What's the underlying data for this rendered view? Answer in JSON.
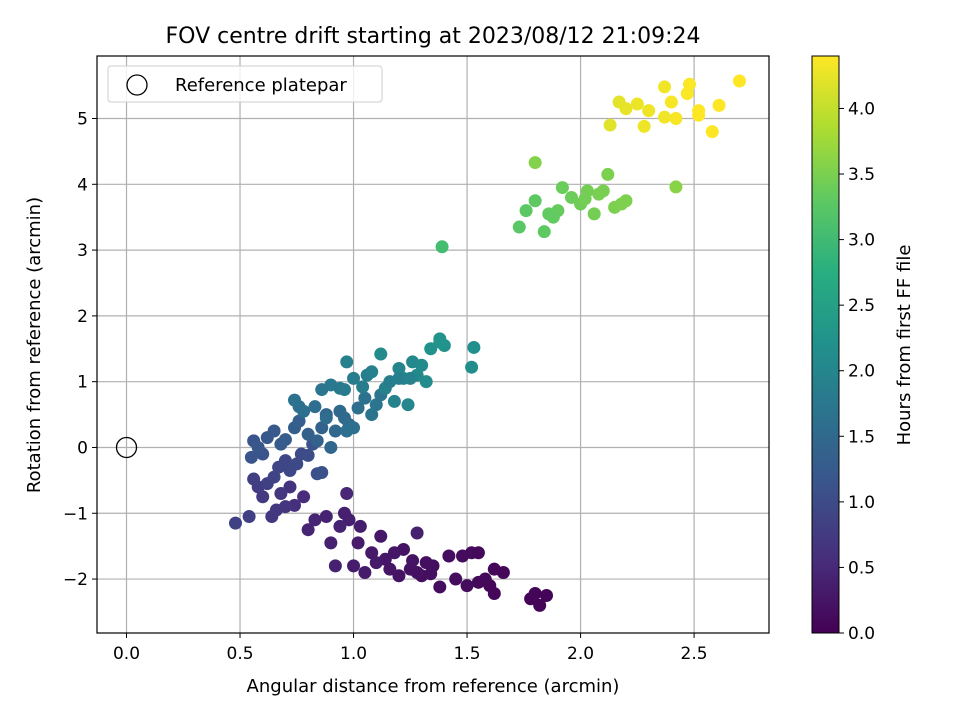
{
  "chart_data": {
    "type": "scatter",
    "title": "FOV centre drift starting at 2023/08/12 21:09:24",
    "xlabel": "Angular distance from reference (arcmin)",
    "ylabel": "Rotation from reference (arcmin)",
    "xlim": [
      -0.13,
      2.83
    ],
    "ylim": [
      -2.82,
      5.95
    ],
    "xticks": [
      0.0,
      0.5,
      1.0,
      1.5,
      2.0,
      2.5
    ],
    "xtick_labels": [
      "0.0",
      "0.5",
      "1.0",
      "1.5",
      "2.0",
      "2.5"
    ],
    "yticks": [
      -2,
      -1,
      0,
      1,
      2,
      3,
      4,
      5
    ],
    "ytick_labels": [
      "−2",
      "−1",
      "0",
      "1",
      "2",
      "3",
      "4",
      "5"
    ],
    "grid": true,
    "legend": {
      "position": "top-left",
      "label": "Reference platepar"
    },
    "reference_point": {
      "x": 0.0,
      "y": 0.0,
      "marker": "open-circle"
    },
    "colorbar": {
      "label": "Hours from first FF file",
      "colormap": "viridis",
      "range": [
        0.0,
        4.4
      ],
      "ticks": [
        0.0,
        0.5,
        1.0,
        1.5,
        2.0,
        2.5,
        3.0,
        3.5,
        4.0
      ],
      "tick_labels": [
        "0.0",
        "0.5",
        "1.0",
        "1.5",
        "2.0",
        "2.5",
        "3.0",
        "3.5",
        "4.0"
      ]
    },
    "points": [
      [
        1.8,
        -2.22,
        0.05
      ],
      [
        1.82,
        -2.4,
        0.05
      ],
      [
        1.85,
        -2.25,
        0.05
      ],
      [
        1.78,
        -2.3,
        0.05
      ],
      [
        1.66,
        -1.9,
        0.08
      ],
      [
        1.62,
        -1.85,
        0.08
      ],
      [
        1.6,
        -2.1,
        0.08
      ],
      [
        1.62,
        -2.22,
        0.08
      ],
      [
        1.58,
        -2.0,
        0.1
      ],
      [
        1.55,
        -2.05,
        0.1
      ],
      [
        1.5,
        -2.1,
        0.12
      ],
      [
        1.52,
        -1.6,
        0.12
      ],
      [
        1.48,
        -1.65,
        0.12
      ],
      [
        1.45,
        -2.0,
        0.12
      ],
      [
        1.42,
        -1.65,
        0.15
      ],
      [
        1.38,
        -2.12,
        0.15
      ],
      [
        1.35,
        -1.8,
        0.15
      ],
      [
        1.32,
        -1.75,
        0.18
      ],
      [
        1.3,
        -1.95,
        0.18
      ],
      [
        1.28,
        -1.9,
        0.2
      ],
      [
        1.25,
        -1.85,
        0.2
      ],
      [
        1.22,
        -1.55,
        0.22
      ],
      [
        1.2,
        -1.95,
        0.22
      ],
      [
        1.18,
        -1.6,
        0.25
      ],
      [
        1.16,
        -1.85,
        0.25
      ],
      [
        1.14,
        -1.7,
        0.28
      ],
      [
        1.12,
        -1.35,
        0.28
      ],
      [
        1.1,
        -1.75,
        0.3
      ],
      [
        1.08,
        -1.6,
        0.3
      ],
      [
        1.05,
        -1.9,
        0.32
      ],
      [
        1.02,
        -1.45,
        0.32
      ],
      [
        1.0,
        -1.8,
        0.35
      ],
      [
        1.03,
        -1.2,
        0.35
      ],
      [
        0.98,
        -1.1,
        0.38
      ],
      [
        0.96,
        -1.0,
        0.38
      ],
      [
        0.92,
        -1.8,
        0.4
      ],
      [
        0.9,
        -1.45,
        0.4
      ],
      [
        0.94,
        -1.2,
        0.42
      ],
      [
        0.88,
        -1.05,
        0.42
      ],
      [
        0.83,
        -1.1,
        0.45
      ],
      [
        0.8,
        -1.25,
        0.45
      ],
      [
        0.97,
        -0.7,
        0.48
      ],
      [
        1.28,
        -1.3,
        0.4
      ],
      [
        1.34,
        -1.92,
        0.18
      ],
      [
        1.26,
        -1.72,
        0.22
      ],
      [
        1.55,
        -1.6,
        0.1
      ],
      [
        0.78,
        -0.75,
        0.55
      ],
      [
        0.74,
        -0.88,
        0.6
      ],
      [
        0.72,
        -0.6,
        0.62
      ],
      [
        0.7,
        -0.9,
        0.65
      ],
      [
        0.68,
        -0.7,
        0.68
      ],
      [
        0.66,
        -0.95,
        0.7
      ],
      [
        0.64,
        -1.05,
        0.72
      ],
      [
        0.6,
        -0.75,
        0.75
      ],
      [
        0.58,
        -0.6,
        0.78
      ],
      [
        0.56,
        -0.48,
        0.8
      ],
      [
        0.54,
        -1.05,
        0.82
      ],
      [
        0.48,
        -1.15,
        0.85
      ],
      [
        0.62,
        -0.55,
        0.85
      ],
      [
        0.65,
        -0.45,
        0.88
      ],
      [
        0.67,
        -0.3,
        0.9
      ],
      [
        0.7,
        -0.2,
        0.92
      ],
      [
        0.72,
        -0.35,
        0.95
      ],
      [
        0.75,
        -0.25,
        0.98
      ],
      [
        0.77,
        -0.1,
        1.0
      ],
      [
        0.8,
        -0.12,
        1.02
      ],
      [
        0.84,
        -0.4,
        1.05
      ],
      [
        0.86,
        -0.38,
        1.08
      ],
      [
        0.82,
        0.05,
        1.1
      ],
      [
        0.6,
        -0.1,
        1.12
      ],
      [
        0.56,
        0.1,
        1.15
      ],
      [
        0.55,
        -0.15,
        1.15
      ],
      [
        0.58,
        0.0,
        1.18
      ],
      [
        0.62,
        0.15,
        1.2
      ],
      [
        0.65,
        0.25,
        1.22
      ],
      [
        0.68,
        0.05,
        1.25
      ],
      [
        0.7,
        0.12,
        1.28
      ],
      [
        0.74,
        0.3,
        1.3
      ],
      [
        0.76,
        0.4,
        1.32
      ],
      [
        0.8,
        0.2,
        1.35
      ],
      [
        0.84,
        0.1,
        1.38
      ],
      [
        0.86,
        0.3,
        1.4
      ],
      [
        0.88,
        0.5,
        1.42
      ],
      [
        0.9,
        0.0,
        1.45
      ],
      [
        0.92,
        0.25,
        1.48
      ],
      [
        0.94,
        0.55,
        1.5
      ],
      [
        0.96,
        0.45,
        1.52
      ],
      [
        0.98,
        0.35,
        1.55
      ],
      [
        1.0,
        0.3,
        1.58
      ],
      [
        0.97,
        0.25,
        1.6
      ],
      [
        1.02,
        0.6,
        1.62
      ],
      [
        1.05,
        0.75,
        1.65
      ],
      [
        1.08,
        0.5,
        1.68
      ],
      [
        1.1,
        0.65,
        1.7
      ],
      [
        1.12,
        0.8,
        1.72
      ],
      [
        0.76,
        0.62,
        1.6
      ],
      [
        0.74,
        0.72,
        1.65
      ],
      [
        0.78,
        0.55,
        1.6
      ],
      [
        0.83,
        0.62,
        1.58
      ],
      [
        0.88,
        0.45,
        1.55
      ],
      [
        0.94,
        0.9,
        1.78
      ],
      [
        0.96,
        0.88,
        1.8
      ],
      [
        1.0,
        1.05,
        1.82
      ],
      [
        1.04,
        0.92,
        1.85
      ],
      [
        1.06,
        1.1,
        1.88
      ],
      [
        1.08,
        1.15,
        1.9
      ],
      [
        1.14,
        0.9,
        1.92
      ],
      [
        1.18,
        0.7,
        1.95
      ],
      [
        1.2,
        1.2,
        1.98
      ],
      [
        1.22,
        1.05,
        2.0
      ],
      [
        1.24,
        0.65,
        2.02
      ],
      [
        1.26,
        1.3,
        2.05
      ],
      [
        1.28,
        1.1,
        2.08
      ],
      [
        1.3,
        1.25,
        2.1
      ],
      [
        1.32,
        1.0,
        2.12
      ],
      [
        0.97,
        1.3,
        1.9
      ],
      [
        1.12,
        1.42,
        2.1
      ],
      [
        1.34,
        1.5,
        2.2
      ],
      [
        1.38,
        1.65,
        2.25
      ],
      [
        1.4,
        1.55,
        2.22
      ],
      [
        1.38,
        1.6,
        2.25
      ],
      [
        1.52,
        1.22,
        2.15
      ],
      [
        1.53,
        1.52,
        2.18
      ],
      [
        0.9,
        0.95,
        1.75
      ],
      [
        0.86,
        0.88,
        1.7
      ],
      [
        1.16,
        1.0,
        1.85
      ],
      [
        1.2,
        1.05,
        1.88
      ],
      [
        1.25,
        1.05,
        1.95
      ],
      [
        1.39,
        3.05,
        3.05
      ],
      [
        1.73,
        3.35,
        3.25
      ],
      [
        1.76,
        3.6,
        3.28
      ],
      [
        1.8,
        3.75,
        3.3
      ],
      [
        1.84,
        3.28,
        3.3
      ],
      [
        1.86,
        3.55,
        3.32
      ],
      [
        1.9,
        3.6,
        3.35
      ],
      [
        1.92,
        3.95,
        3.38
      ],
      [
        1.96,
        3.8,
        3.4
      ],
      [
        2.0,
        3.7,
        3.42
      ],
      [
        2.03,
        3.9,
        3.45
      ],
      [
        2.06,
        3.55,
        3.45
      ],
      [
        2.08,
        3.85,
        3.48
      ],
      [
        2.12,
        4.15,
        3.5
      ],
      [
        2.15,
        3.65,
        3.5
      ],
      [
        2.18,
        3.7,
        3.52
      ],
      [
        2.2,
        3.75,
        3.52
      ],
      [
        1.8,
        4.33,
        3.55
      ],
      [
        2.42,
        3.96,
        3.6
      ],
      [
        1.88,
        3.5,
        3.32
      ],
      [
        2.1,
        3.9,
        3.48
      ],
      [
        2.02,
        3.78,
        3.44
      ],
      [
        2.13,
        4.9,
        4.2
      ],
      [
        2.17,
        5.25,
        4.22
      ],
      [
        2.2,
        5.15,
        4.25
      ],
      [
        2.25,
        5.22,
        4.28
      ],
      [
        2.28,
        4.88,
        4.3
      ],
      [
        2.3,
        5.12,
        4.3
      ],
      [
        2.37,
        5.48,
        4.32
      ],
      [
        2.4,
        5.25,
        4.35
      ],
      [
        2.42,
        5.0,
        4.35
      ],
      [
        2.47,
        5.38,
        4.38
      ],
      [
        2.48,
        5.52,
        4.38
      ],
      [
        2.52,
        5.05,
        4.4
      ],
      [
        2.52,
        5.12,
        4.4
      ],
      [
        2.58,
        4.8,
        4.42
      ],
      [
        2.61,
        5.2,
        4.42
      ],
      [
        2.7,
        5.57,
        4.45
      ],
      [
        2.37,
        5.02,
        4.32
      ]
    ]
  }
}
